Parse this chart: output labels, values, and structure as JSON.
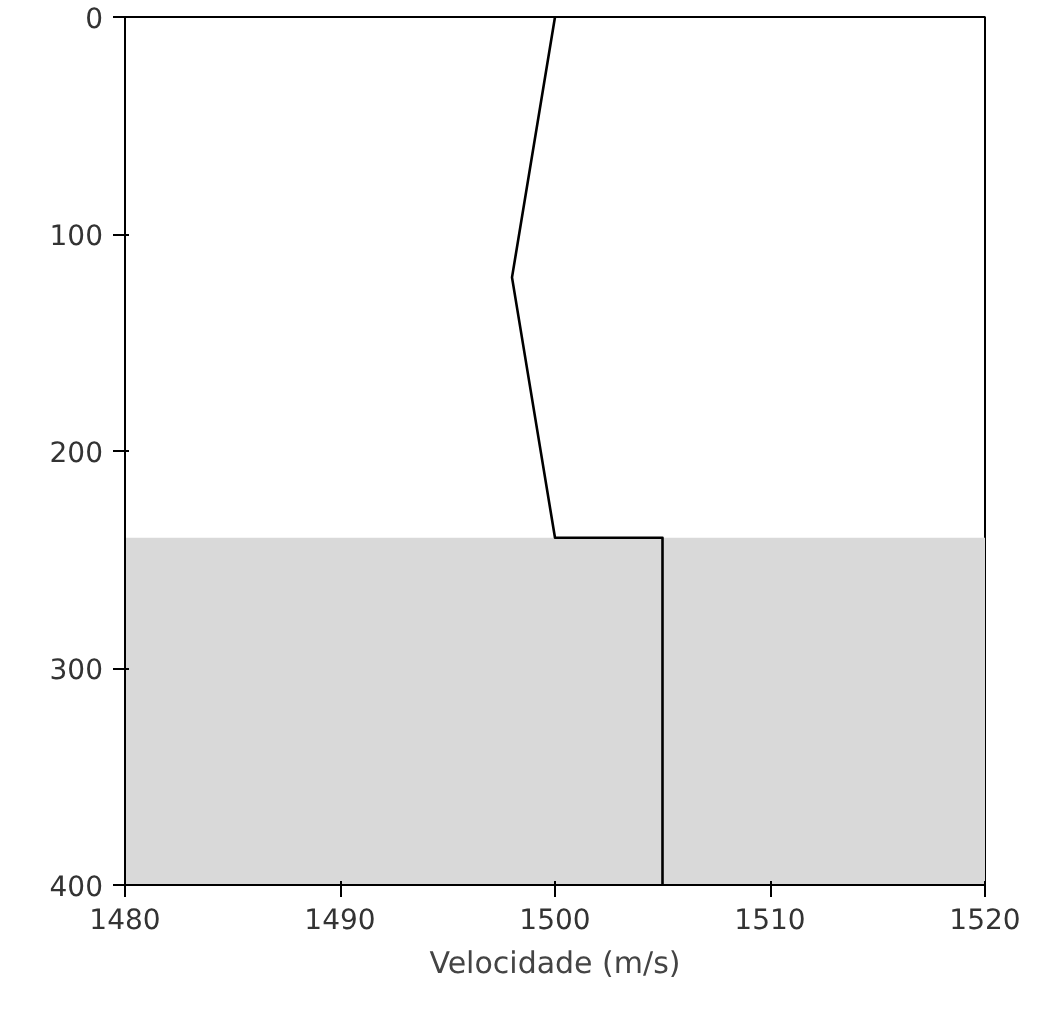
{
  "chart_data": {
    "type": "line",
    "xlabel": "Velocidade (m/s)",
    "x": [
      1500,
      1498,
      1500,
      1505,
      1505
    ],
    "series": [
      {
        "color": "#000000",
        "values": [
          0,
          120,
          240,
          240,
          400
        ]
      }
    ],
    "xlim": [
      1480,
      1520
    ],
    "xticks": [
      1480,
      1490,
      1500,
      1510,
      1520
    ],
    "ylim": [
      400,
      0
    ],
    "yticks": [
      0,
      100,
      200,
      300,
      400
    ],
    "bands": [
      {
        "axis": "y",
        "from": 240,
        "to": 400,
        "color": "#d9d9d9"
      }
    ],
    "marker": "none",
    "line_style": "solid"
  }
}
